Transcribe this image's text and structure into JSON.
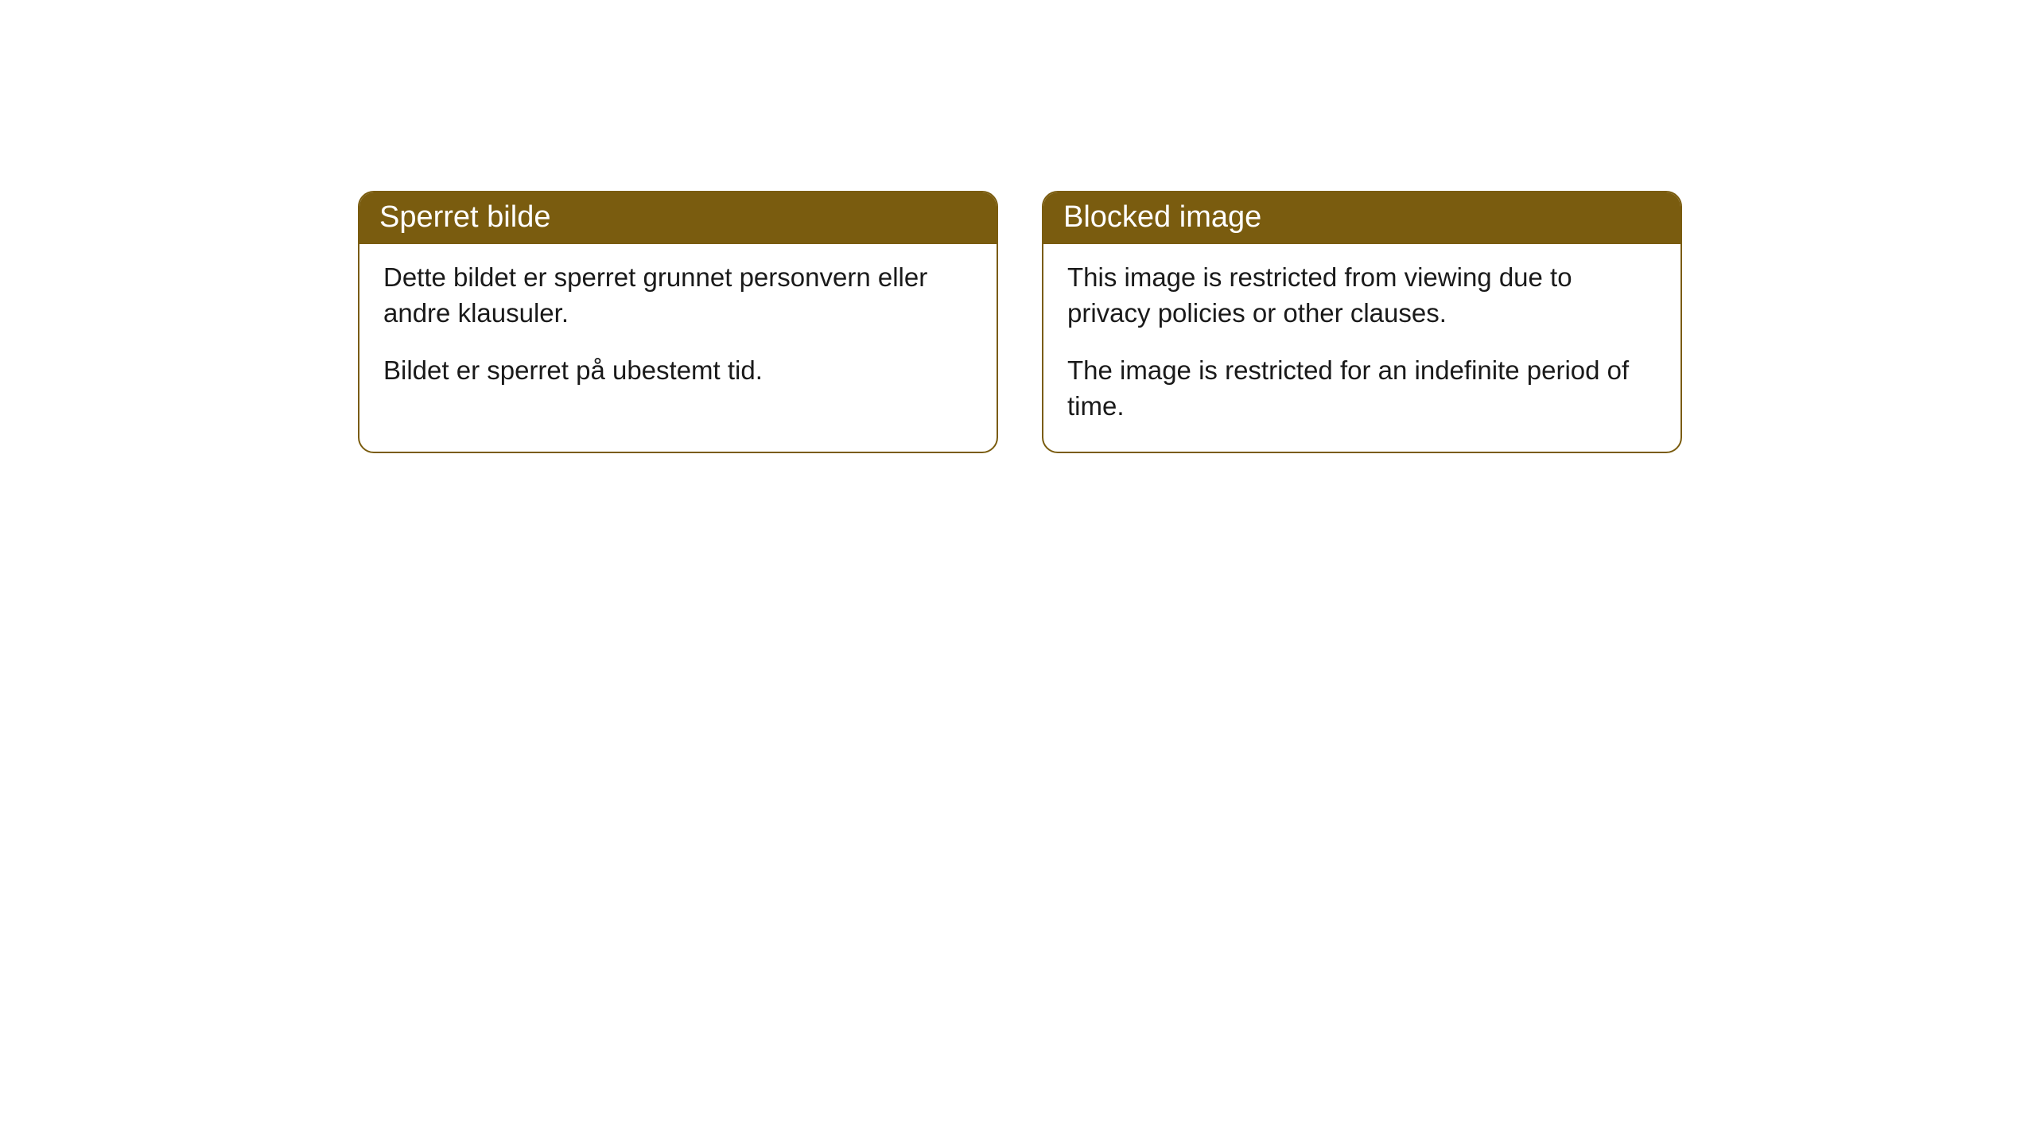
{
  "cards": [
    {
      "title": "Sperret bilde",
      "paragraph1": "Dette bildet er sperret grunnet personvern eller andre klausuler.",
      "paragraph2": "Bildet er sperret på ubestemt tid."
    },
    {
      "title": "Blocked image",
      "paragraph1": "This image is restricted from viewing due to privacy policies or other clauses.",
      "paragraph2": "The image is restricted for an indefinite period of time."
    }
  ],
  "styling": {
    "header_background_color": "#7a5c0f",
    "header_text_color": "#ffffff",
    "border_color": "#7a5c0f",
    "body_background_color": "#ffffff",
    "body_text_color": "#1a1a1a",
    "border_radius": 20,
    "header_fontsize": 38,
    "body_fontsize": 33
  }
}
